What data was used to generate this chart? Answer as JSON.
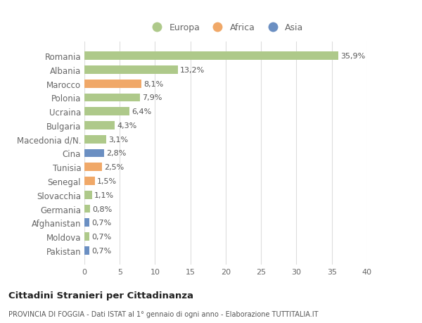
{
  "countries": [
    "Romania",
    "Albania",
    "Marocco",
    "Polonia",
    "Ucraina",
    "Bulgaria",
    "Macedonia d/N.",
    "Cina",
    "Tunisia",
    "Senegal",
    "Slovacchia",
    "Germania",
    "Afghanistan",
    "Moldova",
    "Pakistan"
  ],
  "values": [
    35.9,
    13.2,
    8.1,
    7.9,
    6.4,
    4.3,
    3.1,
    2.8,
    2.5,
    1.5,
    1.1,
    0.8,
    0.7,
    0.7,
    0.7
  ],
  "labels": [
    "35,9%",
    "13,2%",
    "8,1%",
    "7,9%",
    "6,4%",
    "4,3%",
    "3,1%",
    "2,8%",
    "2,5%",
    "1,5%",
    "1,1%",
    "0,8%",
    "0,7%",
    "0,7%",
    "0,7%"
  ],
  "continents": [
    "Europa",
    "Europa",
    "Africa",
    "Europa",
    "Europa",
    "Europa",
    "Europa",
    "Asia",
    "Africa",
    "Africa",
    "Europa",
    "Europa",
    "Asia",
    "Europa",
    "Asia"
  ],
  "colors": {
    "Europa": "#aec98a",
    "Africa": "#f0a868",
    "Asia": "#6b8fc2"
  },
  "xlim": [
    0,
    40
  ],
  "xticks": [
    0,
    5,
    10,
    15,
    20,
    25,
    30,
    35,
    40
  ],
  "title": "Cittadini Stranieri per Cittadinanza",
  "subtitle": "PROVINCIA DI FOGGIA - Dati ISTAT al 1° gennaio di ogni anno - Elaborazione TUTTITALIA.IT",
  "bg_color": "#ffffff",
  "grid_color": "#dddddd",
  "bar_height": 0.6,
  "label_fontsize": 8.0,
  "tick_fontsize": 8.0,
  "ytick_fontsize": 8.5
}
